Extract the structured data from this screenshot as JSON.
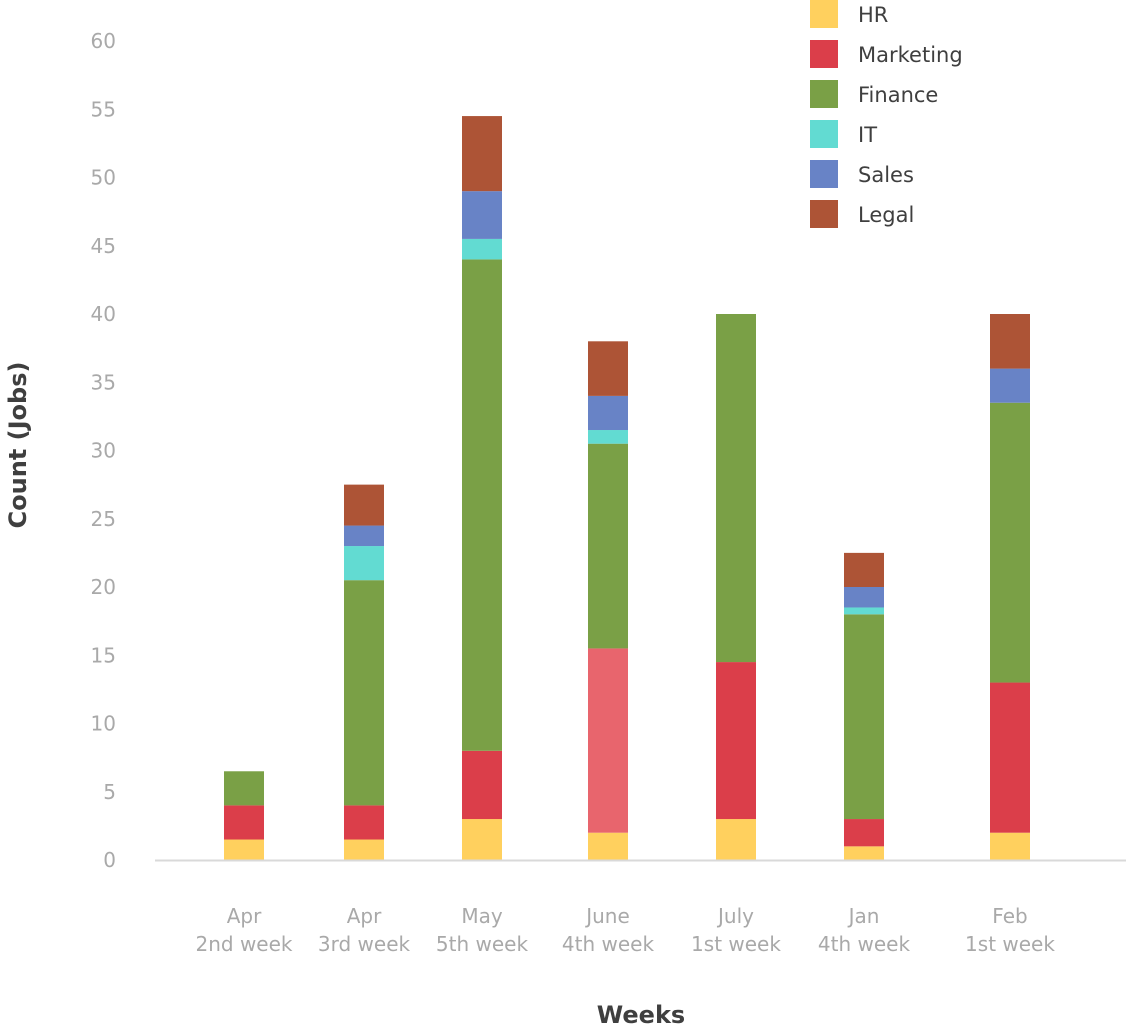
{
  "chart_data": {
    "type": "bar",
    "stacked": true,
    "title": "",
    "xlabel": "Weeks",
    "ylabel": "Count (Jobs)",
    "ylim": [
      0,
      60
    ],
    "yticks": [
      0,
      5,
      10,
      15,
      20,
      25,
      30,
      35,
      40,
      45,
      50,
      55,
      60
    ],
    "grid": false,
    "legend_position": "top-right",
    "categories": [
      {
        "line1": "Apr",
        "line2": "2nd week"
      },
      {
        "line1": "Apr",
        "line2": "3rd week"
      },
      {
        "line1": "May",
        "line2": "5th week"
      },
      {
        "line1": "June",
        "line2": "4th week"
      },
      {
        "line1": "July",
        "line2": "1st week"
      },
      {
        "line1": "Jan",
        "line2": "4th week"
      },
      {
        "line1": "Feb",
        "line2": "1st week"
      }
    ],
    "series": [
      {
        "name": "HR",
        "color": "#ffd05e",
        "values": [
          1.5,
          1.5,
          3,
          2,
          3,
          1,
          2
        ]
      },
      {
        "name": "Marketing",
        "color": "#db3e4a",
        "values": [
          2.5,
          2.5,
          5,
          13.5,
          11.5,
          2,
          11
        ],
        "highlight": {
          "index": 3,
          "color": "#e8656d"
        }
      },
      {
        "name": "Finance",
        "color": "#7aa046",
        "values": [
          2.5,
          16.5,
          36,
          15,
          25.5,
          15,
          20.5
        ]
      },
      {
        "name": "IT",
        "color": "#62dbd2",
        "values": [
          0,
          2.5,
          1.5,
          1,
          0,
          0.5,
          0
        ]
      },
      {
        "name": "Sales",
        "color": "#6883c6",
        "values": [
          0,
          1.5,
          3.5,
          2.5,
          0,
          1.5,
          2.5
        ]
      },
      {
        "name": "Legal",
        "color": "#ad5436",
        "values": [
          0,
          3,
          5.5,
          4,
          0,
          2.5,
          4
        ]
      }
    ]
  }
}
